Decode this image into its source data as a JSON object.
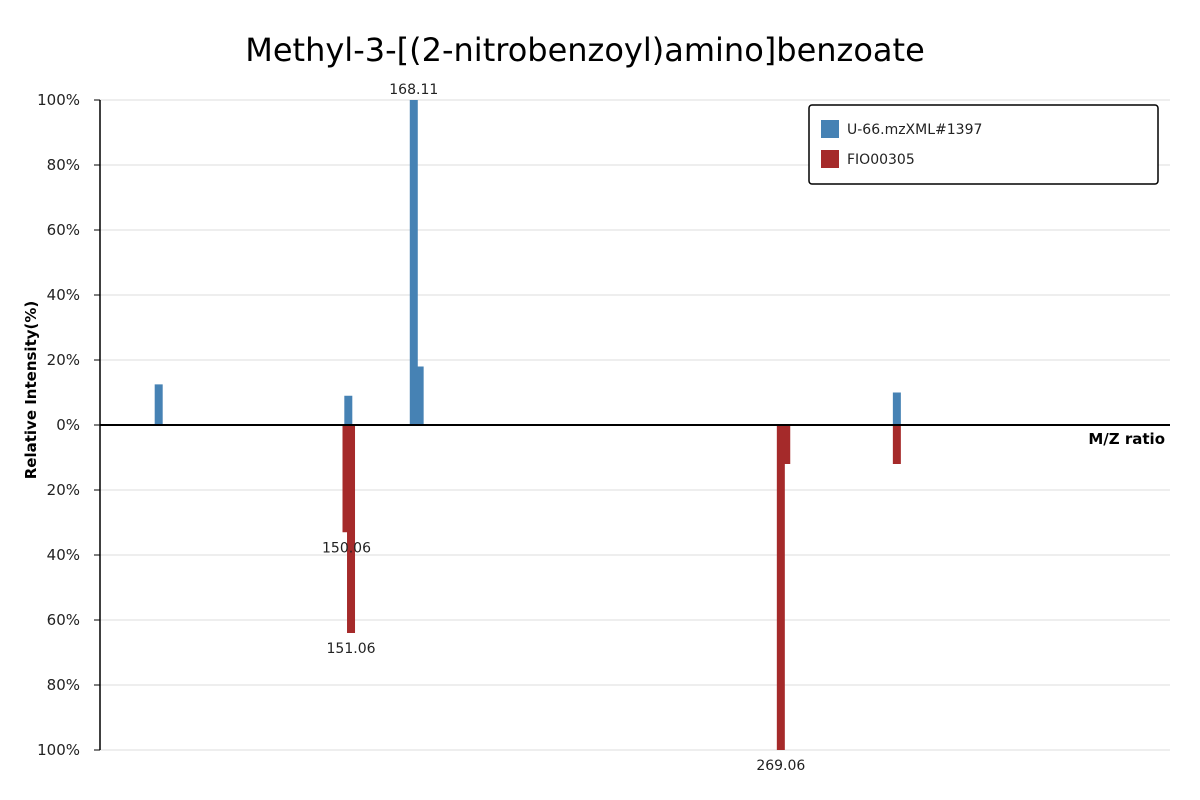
{
  "chart_data": {
    "type": "bar",
    "title": "Methyl-3-[(2-nitrobenzoyl)amino]benzoate",
    "xlabel": "M/Z ratio",
    "ylabel": "Relative Intensity(%)",
    "yticks_top": [
      "100%",
      "80%",
      "60%",
      "40%",
      "20%",
      "0%"
    ],
    "yticks_bottom": [
      "20%",
      "40%",
      "60%",
      "80%",
      "100%"
    ],
    "ylim": [
      -100,
      100
    ],
    "xlim": [
      76,
      313
    ],
    "grid": true,
    "legend_position": "top-right",
    "series": [
      {
        "name": "U-66.mzXML#1397",
        "color": "#4682b4",
        "direction": "up",
        "peaks": [
          {
            "mz": 89.0,
            "intensity": 12.5
          },
          {
            "mz": 131.0,
            "intensity": 9.0
          },
          {
            "mz": 145.5,
            "intensity": 100.0,
            "label": "168.11"
          },
          {
            "mz": 146.8,
            "intensity": 18.0
          },
          {
            "mz": 252.5,
            "intensity": 10.0
          }
        ]
      },
      {
        "name": "FIO00305",
        "color": "#a52a2a",
        "direction": "down",
        "peaks": [
          {
            "mz": 130.6,
            "intensity": 33.0,
            "label": "150.06"
          },
          {
            "mz": 131.6,
            "intensity": 64.0,
            "label": "151.06"
          },
          {
            "mz": 226.8,
            "intensity": 100.0,
            "label": "269.06"
          },
          {
            "mz": 228.0,
            "intensity": 12.0
          },
          {
            "mz": 252.5,
            "intensity": 12.0
          }
        ]
      }
    ]
  }
}
